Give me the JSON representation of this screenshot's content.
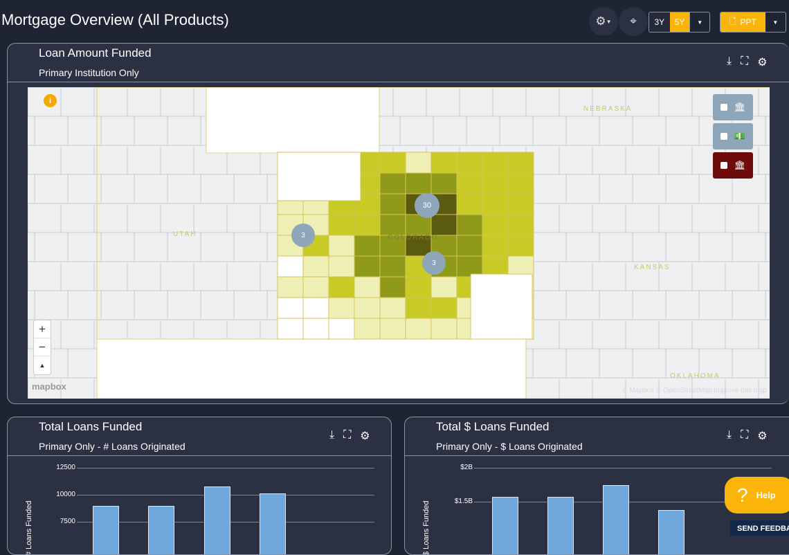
{
  "header": {
    "title": "Mortgage Overview (All Products)",
    "range_options": [
      "3Y",
      "5Y"
    ],
    "selected_range": "5Y",
    "export_label": "PPT"
  },
  "map_panel": {
    "title": "Loan Amount Funded",
    "subtitle": "Primary Institution Only",
    "state_labels": [
      "NEBRASKA",
      "UTAH",
      "COLORADO",
      "KANSAS",
      "OKLAHOMA"
    ],
    "clusters": [
      "30",
      "3",
      "3"
    ],
    "attribution": "© Mapbox © OpenStreetMap Improve this map",
    "logo": "mapbox",
    "zoom_in": "+",
    "zoom_out": "−",
    "compass": "▲",
    "info": "i",
    "colors": {
      "dark": "#5a5a10",
      "mid": "#8f9a18",
      "bright": "#c8cb25",
      "pale": "#eeefb4",
      "layer_active": "#6e0b0b",
      "layer": "#8ea6ba"
    }
  },
  "chart_left": {
    "title": "Total Loans Funded",
    "subtitle": "Primary Only - # Loans Originated",
    "chart_data": {
      "type": "bar",
      "ylabel": "# Loans Funded",
      "yticks": [
        "12500",
        "10000",
        "7500"
      ],
      "ylim": [
        6000,
        12500
      ],
      "values": [
        9000,
        9000,
        10800,
        10100
      ]
    }
  },
  "chart_right": {
    "title": "Total $ Loans Funded",
    "subtitle": "Primary Only - $ Loans Originated",
    "chart_data": {
      "type": "bar",
      "ylabel": "$ Loans Funded",
      "yticks": [
        "$2B",
        "$1.5B"
      ],
      "ytick_values": [
        2.0,
        1.5
      ],
      "ylim": [
        1.0,
        2.0
      ],
      "values": [
        1.57,
        1.57,
        1.74,
        1.38
      ]
    }
  },
  "help": {
    "label": "Help",
    "icon": "?"
  },
  "feedback": {
    "label": "SEND FEEDBACK"
  }
}
